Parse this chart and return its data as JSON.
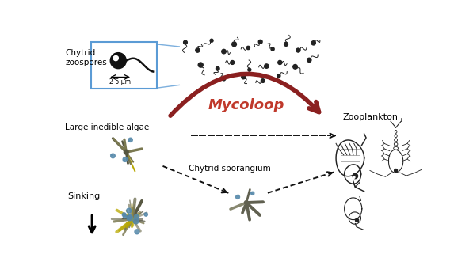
{
  "title": "Mycoloop",
  "title_color": "#c0392b",
  "title_fontsize": 13,
  "bg_color": "#ffffff",
  "labels": {
    "chytrid_zoospores": "Chytrid\nzoospores",
    "size_label": "2-5 μm",
    "large_algae": "Large inedible algae",
    "chytrid_sporangium": "Chytrid sporangium",
    "sinking": "Sinking",
    "zooplankton": "Zooplankton"
  },
  "label_fontsize": 7.5,
  "arrow_color": "#8b2020",
  "dashed_arrow_color": "#111111",
  "box_color": "#5b9bd5",
  "organism_color": "#222222",
  "algae_color_main": "#7a7850",
  "algae_color_accent": "#5588aa",
  "algae_color_yellow": "#b8a800",
  "algae_color_dark": "#555540"
}
